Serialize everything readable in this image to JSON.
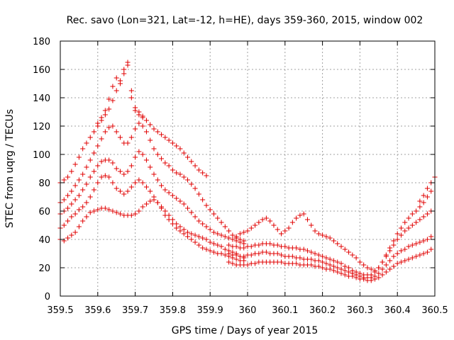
{
  "chart_data": {
    "type": "scatter",
    "title": "Rec. savo (Lon=321, Lat=-12, h=HE), days 359-360, 2015, window 002",
    "xlabel": "GPS time / Days of year 2015",
    "ylabel": "STEC from uqrg / TECUs",
    "xlim": [
      359.5,
      360.5
    ],
    "ylim": [
      0,
      180
    ],
    "x_ticks": [
      359.5,
      359.6,
      359.7,
      359.8,
      359.9,
      360,
      360.1,
      360.2,
      360.3,
      360.4,
      360.5
    ],
    "x_tick_labels": [
      "359.5",
      "359.6",
      "359.7",
      "359.8",
      "359.9",
      "360",
      "360.1",
      "360.2",
      "360.3",
      "360.4",
      "360.5"
    ],
    "y_ticks": [
      0,
      20,
      40,
      60,
      80,
      100,
      120,
      140,
      160,
      180
    ],
    "y_tick_labels": [
      "0",
      "20",
      "40",
      "60",
      "80",
      "100",
      "120",
      "140",
      "160",
      "180"
    ],
    "grid": true,
    "marker": "+",
    "marker_color": "#e00000",
    "series": [
      {
        "x": [
          359.5,
          359.51,
          359.52,
          359.53,
          359.54,
          359.55,
          359.56,
          359.57,
          359.58,
          359.59,
          359.6,
          359.61,
          359.62,
          359.63,
          359.64,
          359.65,
          359.66,
          359.67,
          359.68,
          359.69,
          359.7,
          359.71,
          359.72,
          359.73,
          359.74,
          359.75,
          359.76,
          359.77,
          359.78,
          359.79,
          359.8,
          359.81,
          359.82,
          359.83,
          359.84,
          359.85,
          359.86,
          359.87,
          359.88,
          359.89,
          359.9,
          359.91,
          359.92,
          359.93,
          359.94,
          359.95,
          359.96,
          359.97,
          359.98,
          359.99
        ],
        "y": [
          40,
          39,
          41,
          43,
          45,
          49,
          53,
          56,
          59,
          60,
          61,
          62,
          62,
          61,
          60,
          59,
          58,
          57,
          57,
          57,
          58,
          60,
          63,
          65,
          67,
          68,
          66,
          62,
          57,
          54,
          51,
          48,
          46,
          44,
          42,
          40,
          38,
          36,
          34,
          33,
          32,
          31,
          30,
          30,
          29,
          28,
          27,
          26,
          25,
          25
        ]
      },
      {
        "x": [
          359.5,
          359.51,
          359.52,
          359.53,
          359.54,
          359.55,
          359.56,
          359.57,
          359.58,
          359.59,
          359.6,
          359.61,
          359.62,
          359.63,
          359.64,
          359.65,
          359.66,
          359.67,
          359.68,
          359.69,
          359.7,
          359.71,
          359.72,
          359.73,
          359.74,
          359.75,
          359.76,
          359.77,
          359.78,
          359.79,
          359.8,
          359.81,
          359.82,
          359.83,
          359.84,
          359.85,
          359.86,
          359.87,
          359.88,
          359.89,
          359.9,
          359.91,
          359.92,
          359.93,
          359.94,
          359.95,
          359.96,
          359.97,
          359.98,
          359.99
        ],
        "y": [
          48,
          50,
          53,
          56,
          58,
          61,
          63,
          66,
          70,
          75,
          80,
          84,
          85,
          84,
          80,
          76,
          74,
          72,
          74,
          77,
          80,
          82,
          80,
          77,
          74,
          70,
          66,
          63,
          60,
          57,
          54,
          51,
          49,
          47,
          45,
          44,
          43,
          42,
          41,
          40,
          38,
          37,
          36,
          35,
          33,
          32,
          31,
          30,
          28,
          27
        ]
      },
      {
        "x": [
          359.5,
          359.51,
          359.52,
          359.53,
          359.54,
          359.55,
          359.56,
          359.57,
          359.58,
          359.59,
          359.6,
          359.61,
          359.62,
          359.63,
          359.64,
          359.65,
          359.66,
          359.67,
          359.68,
          359.69,
          359.7,
          359.71,
          359.72,
          359.73,
          359.74,
          359.75,
          359.76,
          359.77,
          359.78,
          359.79,
          359.8,
          359.81,
          359.82,
          359.83,
          359.84,
          359.85,
          359.86,
          359.87,
          359.88,
          359.89,
          359.9,
          359.91,
          359.92,
          359.93,
          359.94,
          359.95,
          359.96,
          359.97,
          359.98,
          359.99
        ],
        "y": [
          58,
          60,
          62,
          65,
          68,
          71,
          75,
          79,
          84,
          88,
          92,
          95,
          96,
          96,
          94,
          90,
          88,
          86,
          88,
          92,
          98,
          102,
          100,
          96,
          91,
          86,
          82,
          78,
          75,
          73,
          71,
          69,
          67,
          65,
          62,
          59,
          56,
          53,
          51,
          49,
          47,
          45,
          44,
          43,
          42,
          41,
          40,
          39,
          38,
          37
        ]
      },
      {
        "x": [
          359.5,
          359.51,
          359.52,
          359.53,
          359.54,
          359.55,
          359.56,
          359.57,
          359.58,
          359.59,
          359.6,
          359.61,
          359.62,
          359.63,
          359.64,
          359.65,
          359.66,
          359.67,
          359.68,
          359.69,
          359.7,
          359.71,
          359.72,
          359.73,
          359.74,
          359.75,
          359.76,
          359.77,
          359.78,
          359.79,
          359.8,
          359.81,
          359.82,
          359.83,
          359.84,
          359.85,
          359.86,
          359.87,
          359.88,
          359.89,
          359.9,
          359.91,
          359.92,
          359.93,
          359.94,
          359.95,
          359.96,
          359.97,
          359.98,
          359.99
        ],
        "y": [
          66,
          68,
          71,
          74,
          78,
          82,
          86,
          91,
          96,
          101,
          106,
          111,
          116,
          119,
          120,
          116,
          112,
          108,
          108,
          112,
          118,
          122,
          120,
          116,
          110,
          104,
          100,
          97,
          94,
          92,
          89,
          87,
          86,
          84,
          82,
          79,
          76,
          72,
          68,
          64,
          61,
          58,
          55,
          52,
          49,
          46,
          43,
          41,
          40,
          39
        ]
      },
      {
        "x": [
          359.5,
          359.51,
          359.52,
          359.53,
          359.54,
          359.55,
          359.56,
          359.57,
          359.58,
          359.59,
          359.6,
          359.61,
          359.62,
          359.63,
          359.64,
          359.65,
          359.66,
          359.67,
          359.68,
          359.69,
          359.7,
          359.71,
          359.72,
          359.73,
          359.74,
          359.75,
          359.76,
          359.77,
          359.78,
          359.79,
          359.8,
          359.81,
          359.82,
          359.83,
          359.84,
          359.85,
          359.86,
          359.87,
          359.88,
          359.89
        ],
        "y": [
          80,
          82,
          84,
          88,
          93,
          98,
          104,
          108,
          112,
          116,
          120,
          124,
          128,
          132,
          138,
          145,
          152,
          157,
          163,
          145,
          131,
          128,
          126,
          124,
          121,
          118,
          116,
          114,
          112,
          110,
          108,
          106,
          104,
          101,
          98,
          95,
          92,
          89,
          87,
          85
        ]
      },
      {
        "x": [
          359.6,
          359.61,
          359.62,
          359.63,
          359.64,
          359.65,
          359.66,
          359.67,
          359.68,
          359.69,
          359.7,
          359.71,
          359.72
        ],
        "y": [
          122,
          126,
          131,
          139,
          148,
          154,
          150,
          160,
          165,
          140,
          133,
          130,
          127
        ]
      },
      {
        "x": [
          359.95,
          359.96,
          359.97,
          359.98,
          359.99,
          360.0,
          360.01,
          360.02,
          360.03,
          360.04,
          360.05,
          360.06,
          360.07,
          360.08,
          360.09,
          360.1,
          360.11,
          360.12,
          360.13,
          360.14,
          360.15,
          360.16,
          360.17,
          360.18,
          360.19,
          360.2,
          360.21,
          360.22,
          360.23,
          360.24,
          360.25,
          360.26,
          360.27,
          360.28,
          360.29,
          360.3,
          360.31,
          360.32,
          360.33,
          360.34,
          360.35,
          360.36,
          360.37,
          360.38,
          360.39,
          360.4,
          360.41,
          360.42,
          360.43,
          360.44,
          360.45,
          360.46,
          360.47,
          360.48,
          360.49
        ],
        "y": [
          24,
          23,
          22,
          22,
          22,
          22,
          23,
          23,
          24,
          24,
          24,
          24,
          24,
          24,
          24,
          23,
          23,
          23,
          23,
          22,
          22,
          22,
          22,
          21,
          21,
          20,
          19,
          19,
          18,
          17,
          16,
          15,
          14,
          14,
          13,
          12,
          12,
          11,
          11,
          12,
          13,
          15,
          17,
          19,
          21,
          23,
          24,
          25,
          26,
          27,
          28,
          29,
          30,
          31,
          33
        ]
      },
      {
        "x": [
          359.95,
          359.96,
          359.97,
          359.98,
          359.99,
          360.0,
          360.01,
          360.02,
          360.03,
          360.04,
          360.05,
          360.06,
          360.07,
          360.08,
          360.09,
          360.1,
          360.11,
          360.12,
          360.13,
          360.14,
          360.15,
          360.16,
          360.17,
          360.18,
          360.19,
          360.2,
          360.21,
          360.22,
          360.23,
          360.24,
          360.25,
          360.26,
          360.27,
          360.28,
          360.29,
          360.3,
          360.31,
          360.32,
          360.33,
          360.34,
          360.35,
          360.36,
          360.37,
          360.38,
          360.39,
          360.4,
          360.41,
          360.42,
          360.43,
          360.44,
          360.45,
          360.46,
          360.47,
          360.48,
          360.49
        ],
        "y": [
          30,
          29,
          29,
          28,
          28,
          29,
          29,
          30,
          30,
          31,
          31,
          30,
          30,
          30,
          29,
          28,
          28,
          28,
          27,
          27,
          26,
          26,
          26,
          25,
          25,
          24,
          23,
          22,
          21,
          20,
          19,
          18,
          17,
          16,
          15,
          14,
          13,
          13,
          13,
          14,
          16,
          19,
          22,
          25,
          28,
          30,
          32,
          33,
          35,
          36,
          37,
          38,
          39,
          40,
          42
        ]
      },
      {
        "x": [
          359.95,
          359.96,
          359.97,
          359.98,
          359.99,
          360.0,
          360.01,
          360.02,
          360.03,
          360.04,
          360.05,
          360.06,
          360.07,
          360.08,
          360.09,
          360.1,
          360.11,
          360.12,
          360.13,
          360.14,
          360.15,
          360.16,
          360.17,
          360.18,
          360.19,
          360.2,
          360.21,
          360.22,
          360.23,
          360.24,
          360.25,
          360.26,
          360.27,
          360.28,
          360.29,
          360.3,
          360.31,
          360.32,
          360.33,
          360.34,
          360.35,
          360.36,
          360.37,
          360.38,
          360.39,
          360.4,
          360.41,
          360.42,
          360.43,
          360.44,
          360.45,
          360.46,
          360.47,
          360.48,
          360.49
        ],
        "y": [
          36,
          35,
          35,
          34,
          34,
          35,
          35,
          36,
          36,
          37,
          37,
          37,
          36,
          36,
          35,
          35,
          34,
          34,
          34,
          33,
          33,
          32,
          31,
          30,
          29,
          28,
          27,
          26,
          25,
          24,
          23,
          21,
          20,
          18,
          17,
          16,
          15,
          15,
          15,
          17,
          20,
          24,
          28,
          32,
          36,
          40,
          43,
          46,
          48,
          50,
          52,
          54,
          56,
          58,
          60
        ]
      },
      {
        "x": [
          359.97,
          359.98,
          359.99,
          360.0,
          360.01,
          360.02,
          360.03,
          360.04,
          360.05,
          360.06,
          360.07,
          360.08,
          360.09,
          360.1,
          360.11,
          360.12,
          360.13,
          360.14,
          360.15,
          360.16,
          360.17,
          360.18,
          360.19,
          360.2,
          360.21,
          360.22,
          360.23,
          360.24,
          360.25,
          360.26,
          360.27,
          360.28,
          360.29,
          360.3,
          360.31,
          360.32,
          360.33,
          360.34,
          360.35,
          360.36,
          360.37,
          360.38,
          360.39,
          360.4,
          360.41,
          360.42,
          360.43,
          360.44,
          360.45,
          360.46,
          360.47,
          360.48,
          360.49
        ],
        "y": [
          42,
          44,
          45,
          46,
          48,
          50,
          52,
          54,
          55,
          53,
          50,
          47,
          44,
          46,
          48,
          52,
          55,
          57,
          58,
          54,
          50,
          46,
          44,
          43,
          42,
          41,
          39,
          37,
          35,
          33,
          31,
          29,
          27,
          24,
          22,
          20,
          19,
          18,
          20,
          24,
          29,
          34,
          39,
          44,
          48,
          52,
          55,
          58,
          60,
          63,
          66,
          70,
          74
        ]
      },
      {
        "x": [
          360.46,
          360.47,
          360.48,
          360.49,
          360.5
        ],
        "y": [
          67,
          71,
          76,
          80,
          84
        ]
      }
    ]
  }
}
